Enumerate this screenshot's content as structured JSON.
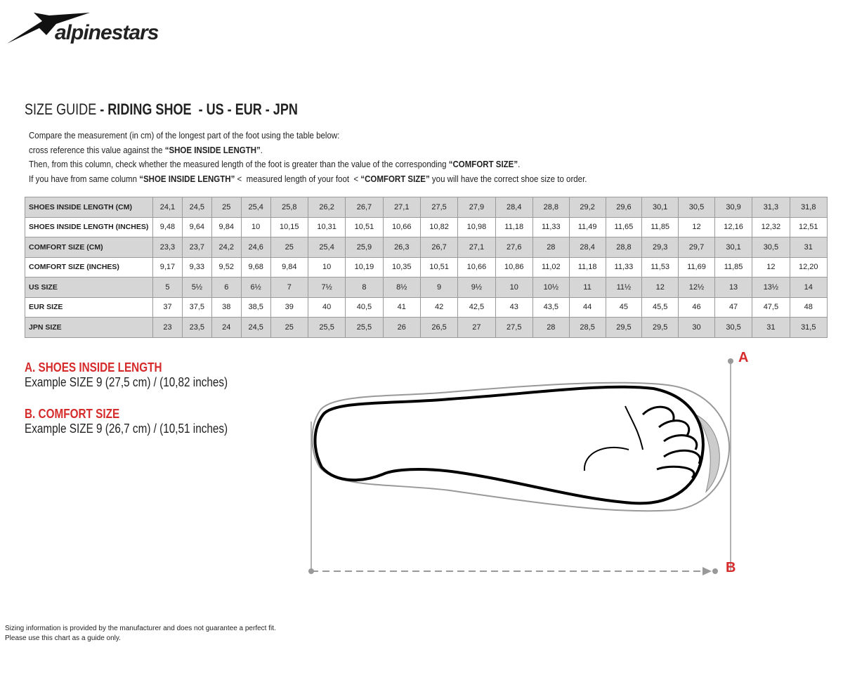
{
  "logo": "alpinestars",
  "title": {
    "light": "SIZE GUIDE",
    "bold": " - RIDING SHOE  - US - EUR - JPN"
  },
  "instructions": [
    [
      {
        "text": "Compare the measurement (in cm) of the longest part of the foot using the table below:",
        "bold": false
      }
    ],
    [
      {
        "text": "cross reference this value against the ",
        "bold": false
      },
      {
        "text": "“SHOE INSIDE LENGTH”",
        "bold": true
      },
      {
        "text": ".",
        "bold": false
      }
    ],
    [
      {
        "text": "Then, from this column, check whether the measured length of the foot is greater than the value of the corresponding ",
        "bold": false
      },
      {
        "text": "“COMFORT SIZE”",
        "bold": true
      },
      {
        "text": ".",
        "bold": false
      }
    ],
    [
      {
        "text": "If you have from same column ",
        "bold": false
      },
      {
        "text": "“SHOE INSIDE LENGTH”",
        "bold": true
      },
      {
        "text": " <  measured length of your foot  < ",
        "bold": false
      },
      {
        "text": "“COMFORT SIZE”",
        "bold": true
      },
      {
        "text": " you will have the correct shoe size to order.",
        "bold": false
      }
    ]
  ],
  "table": {
    "rows": [
      {
        "label": "SHOES INSIDE LENGTH (CM)",
        "cells": [
          "24,1",
          "24,5",
          "25",
          "25,4",
          "25,8",
          "26,2",
          "26,7",
          "27,1",
          "27,5",
          "27,9",
          "28,4",
          "28,8",
          "29,2",
          "29,6",
          "30,1",
          "30,5",
          "30,9",
          "31,3",
          "31,8"
        ]
      },
      {
        "label": "SHOES INSIDE LENGTH (INCHES)",
        "cells": [
          "9,48",
          "9,64",
          "9,84",
          "10",
          "10,15",
          "10,31",
          "10,51",
          "10,66",
          "10,82",
          "10,98",
          "11,18",
          "11,33",
          "11,49",
          "11,65",
          "11,85",
          "12",
          "12,16",
          "12,32",
          "12,51"
        ]
      },
      {
        "label": "COMFORT SIZE (CM)",
        "cells": [
          "23,3",
          "23,7",
          "24,2",
          "24,6",
          "25",
          "25,4",
          "25,9",
          "26,3",
          "26,7",
          "27,1",
          "27,6",
          "28",
          "28,4",
          "28,8",
          "29,3",
          "29,7",
          "30,1",
          "30,5",
          "31"
        ]
      },
      {
        "label": "COMFORT SIZE (INCHES)",
        "cells": [
          "9,17",
          "9,33",
          "9,52",
          "9,68",
          "9,84",
          "10",
          "10,19",
          "10,35",
          "10,51",
          "10,66",
          "10,86",
          "11,02",
          "11,18",
          "11,33",
          "11,53",
          "11,69",
          "11,85",
          "12",
          "12,20"
        ]
      },
      {
        "label": "US SIZE",
        "cells": [
          "5",
          "5½",
          "6",
          "6½",
          "7",
          "7½",
          "8",
          "8½",
          "9",
          "9½",
          "10",
          "10½",
          "11",
          "11½",
          "12",
          "12½",
          "13",
          "13½",
          "14"
        ]
      },
      {
        "label": "EUR SIZE",
        "cells": [
          "37",
          "37,5",
          "38",
          "38,5",
          "39",
          "40",
          "40,5",
          "41",
          "42",
          "42,5",
          "43",
          "43,5",
          "44",
          "45",
          "45,5",
          "46",
          "47",
          "47,5",
          "48"
        ]
      },
      {
        "label": "JPN SIZE",
        "cells": [
          "23",
          "23,5",
          "24",
          "24,5",
          "25",
          "25,5",
          "25,5",
          "26",
          "26,5",
          "27",
          "27,5",
          "28",
          "28,5",
          "29,5",
          "29,5",
          "30",
          "30,5",
          "31",
          "31,5"
        ]
      }
    ]
  },
  "legend": [
    {
      "heading": "A. SHOES INSIDE LENGTH",
      "example": "Example SIZE 9 (27,5 cm) / (10,82 inches)"
    },
    {
      "heading": "B. COMFORT SIZE",
      "example": "Example SIZE 9 (26,7 cm) / (10,51 inches)"
    }
  ],
  "diagram": {
    "label_a": "A",
    "label_b": "B"
  },
  "footer": [
    "Sizing information is provided by the manufacturer and does not guarantee a perfect fit.",
    "Please use this chart as a guide only."
  ]
}
